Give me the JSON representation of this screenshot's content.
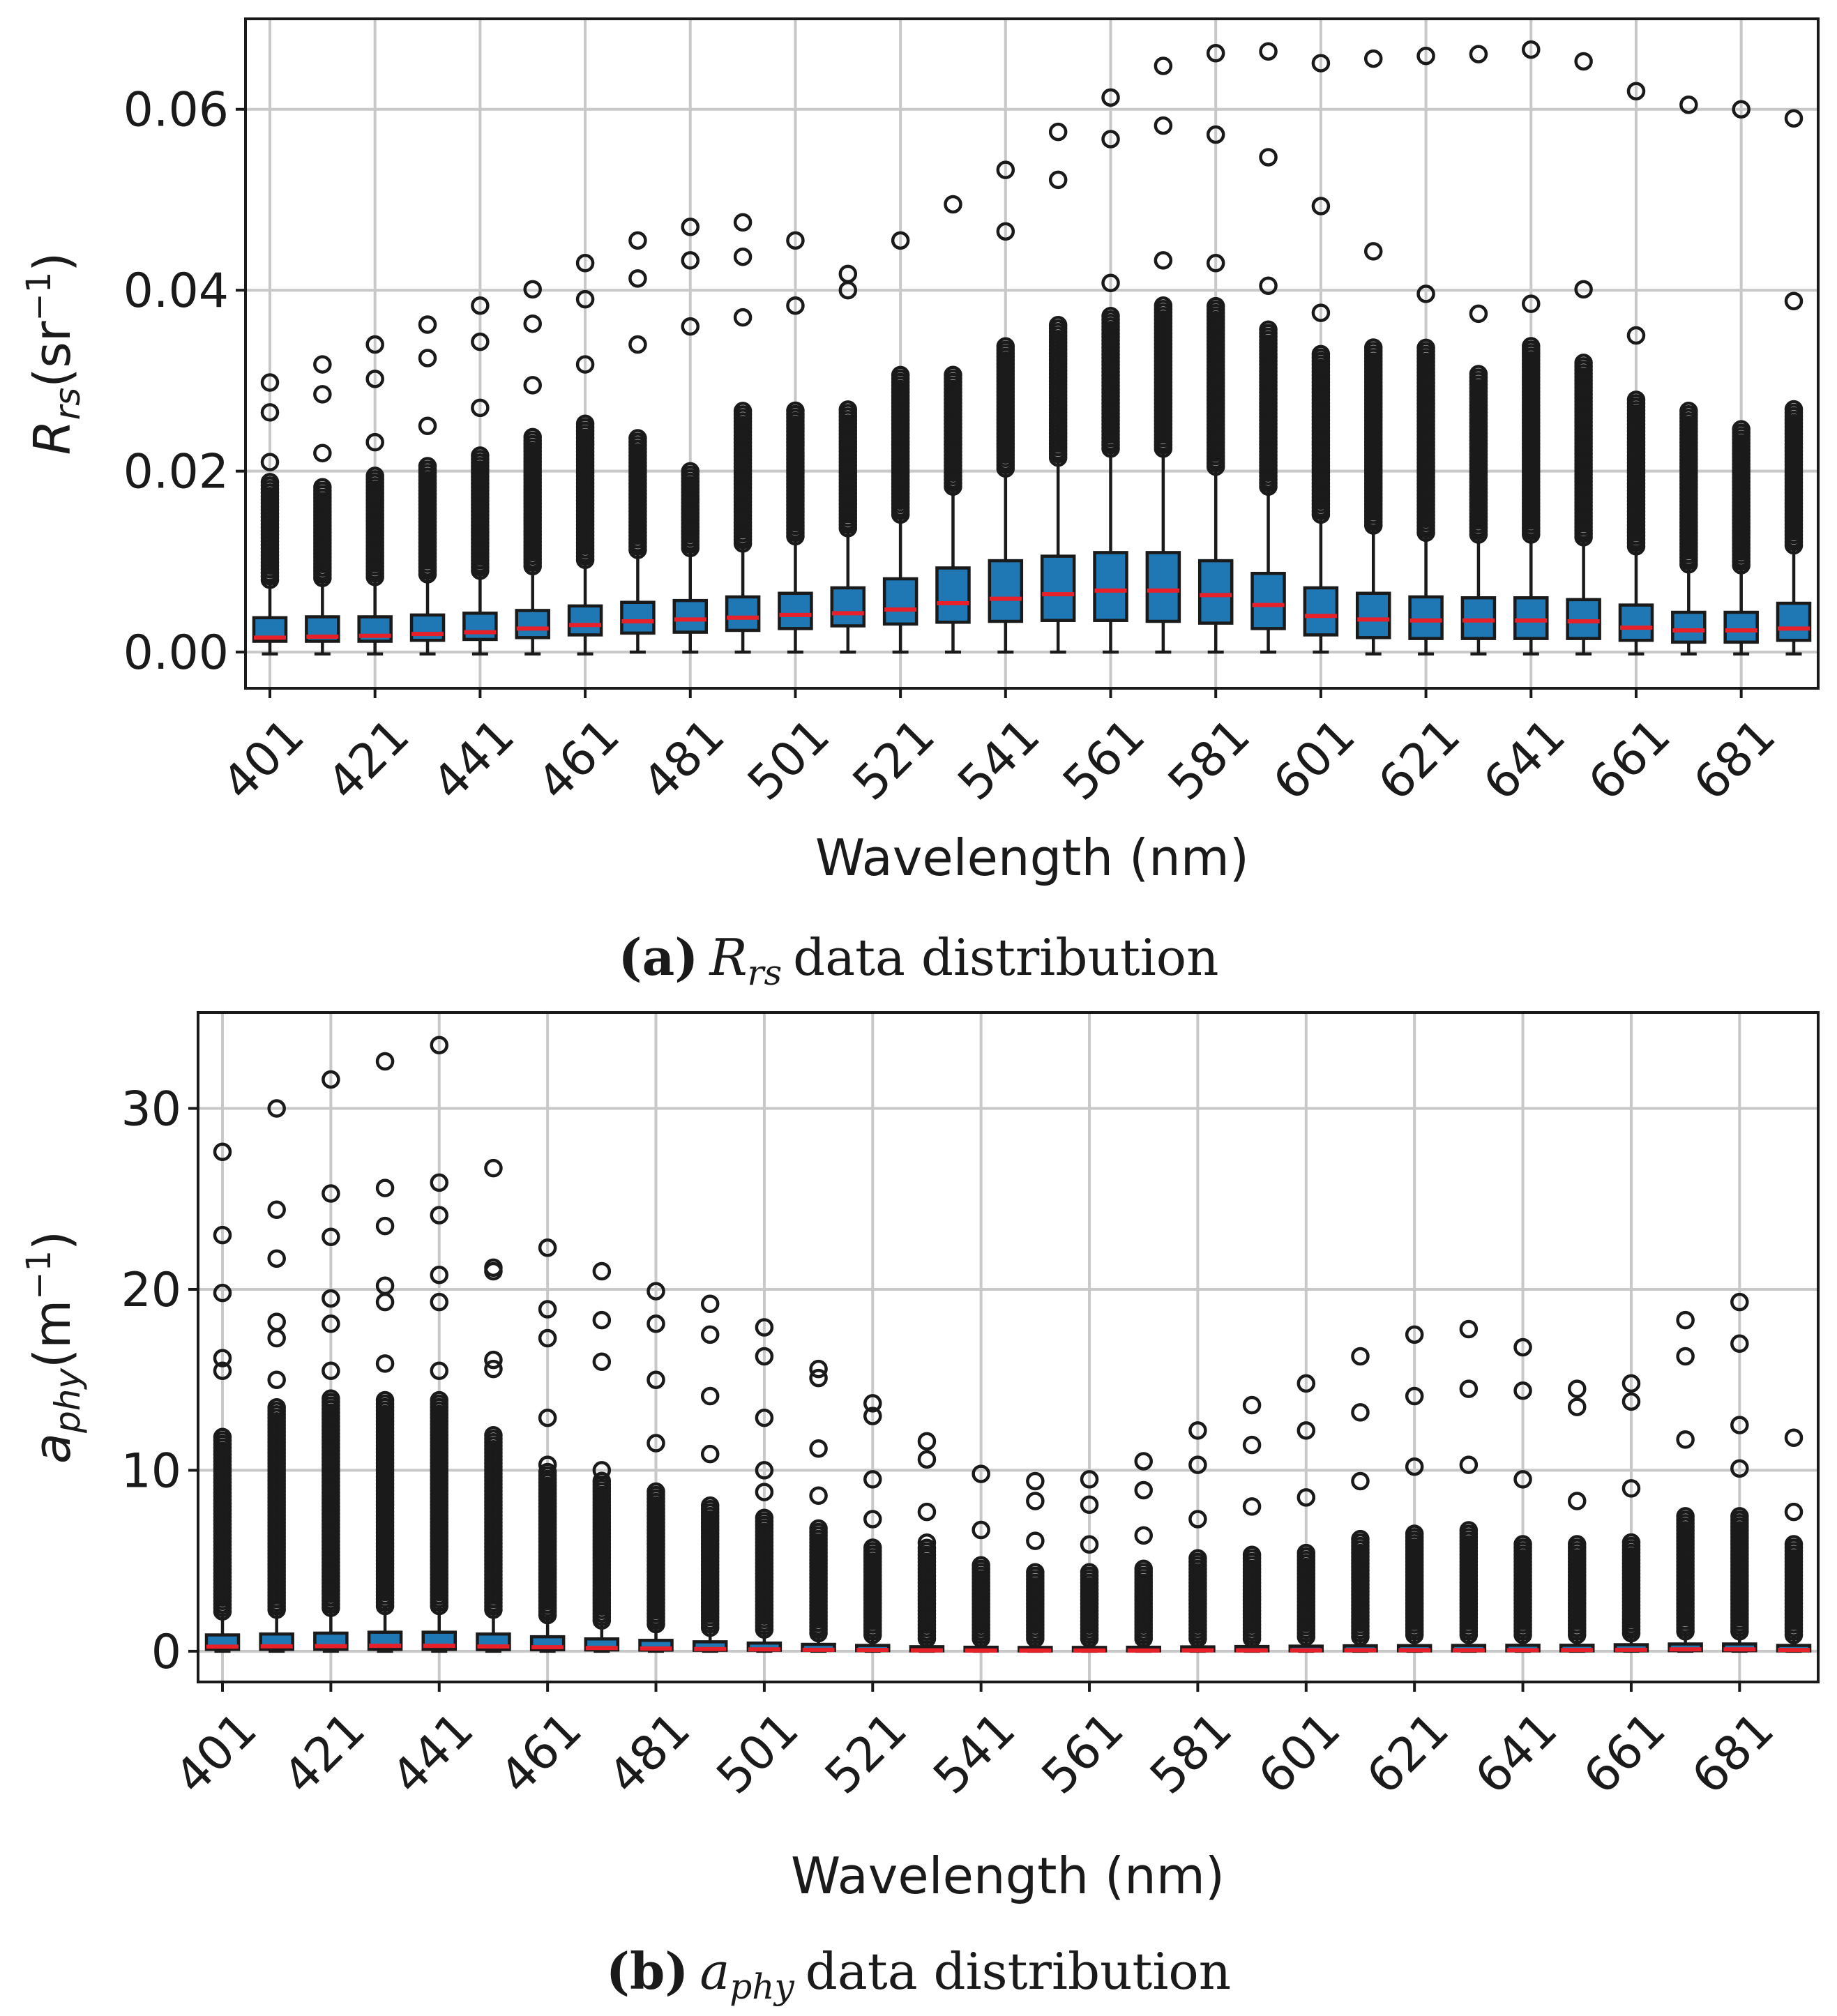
{
  "colors": {
    "box_fill": "#1f77b4",
    "median": "#e8202a",
    "grid": "#c8c8c8",
    "text": "#1a1a1a"
  },
  "chart_data": [
    {
      "type": "box",
      "panel": "a",
      "caption": {
        "label": "(a)",
        "symbol": "R",
        "subscript": "rs",
        "text": "data distribution"
      },
      "xlabel": "Wavelength (nm)",
      "ylabel": {
        "symbol": "R",
        "subscript": "rs",
        "unit_open": "(sr",
        "unit_exp": "−1",
        "unit_close": ")"
      },
      "ylim": [
        -0.004,
        0.07
      ],
      "yticks": [
        "0.00",
        "0.02",
        "0.04",
        "0.06"
      ],
      "ytick_values": [
        0,
        0.02,
        0.04,
        0.06
      ],
      "grid": true,
      "wavelengths": [
        401,
        411,
        421,
        431,
        441,
        451,
        461,
        471,
        481,
        491,
        501,
        511,
        521,
        531,
        541,
        551,
        561,
        571,
        581,
        591,
        601,
        611,
        621,
        631,
        641,
        651,
        661,
        671,
        681,
        691
      ],
      "xticks": [
        "401",
        "421",
        "441",
        "461",
        "481",
        "501",
        "521",
        "541",
        "561",
        "581",
        "601",
        "621",
        "641",
        "661",
        "681"
      ],
      "q1": [
        0.0012,
        0.0012,
        0.0012,
        0.0013,
        0.0014,
        0.0016,
        0.0019,
        0.0021,
        0.0022,
        0.0024,
        0.0026,
        0.0029,
        0.0031,
        0.0033,
        0.0034,
        0.0035,
        0.0035,
        0.0034,
        0.0032,
        0.0026,
        0.0019,
        0.0016,
        0.0015,
        0.0015,
        0.0015,
        0.0015,
        0.0013,
        0.0011,
        0.0011,
        0.0013
      ],
      "median": [
        0.0016,
        0.0017,
        0.0018,
        0.002,
        0.0022,
        0.0026,
        0.003,
        0.0034,
        0.0036,
        0.0038,
        0.0041,
        0.0043,
        0.0047,
        0.0054,
        0.0059,
        0.0064,
        0.0068,
        0.0068,
        0.0063,
        0.0052,
        0.004,
        0.0036,
        0.0035,
        0.0035,
        0.0035,
        0.0034,
        0.0027,
        0.0024,
        0.0024,
        0.0026
      ],
      "q3": [
        0.0038,
        0.0039,
        0.0039,
        0.0041,
        0.0043,
        0.0046,
        0.0051,
        0.0055,
        0.0057,
        0.0061,
        0.0065,
        0.0071,
        0.0081,
        0.0093,
        0.0101,
        0.0106,
        0.011,
        0.011,
        0.0101,
        0.0087,
        0.0071,
        0.0065,
        0.0061,
        0.006,
        0.006,
        0.0058,
        0.0052,
        0.0044,
        0.0044,
        0.0054
      ],
      "whisker_low": [
        -0.0002,
        -0.0002,
        -0.0002,
        -0.0002,
        -0.0002,
        -0.0002,
        -0.0002,
        0.0,
        0.0,
        0.0,
        0.0,
        0.0,
        0.0,
        0.0,
        0.0,
        0.0,
        0.0,
        0.0,
        0.0,
        0.0,
        0.0,
        -0.0002,
        -0.0002,
        -0.0002,
        -0.0002,
        -0.0002,
        -0.0002,
        -0.0002,
        -0.0002,
        -0.0002
      ],
      "whisker_high": [
        0.0078,
        0.008,
        0.0081,
        0.0084,
        0.0088,
        0.0093,
        0.01,
        0.011,
        0.0113,
        0.0118,
        0.0126,
        0.0134,
        0.015,
        0.018,
        0.02,
        0.0212,
        0.0222,
        0.0222,
        0.0202,
        0.018,
        0.015,
        0.0138,
        0.013,
        0.0128,
        0.0128,
        0.0125,
        0.0115,
        0.0095,
        0.0094,
        0.0116
      ],
      "outlier_min": [
        0.008,
        0.0082,
        0.0083,
        0.0086,
        0.009,
        0.0095,
        0.0102,
        0.0113,
        0.0115,
        0.012,
        0.0128,
        0.0137,
        0.0152,
        0.0183,
        0.0203,
        0.0215,
        0.0225,
        0.0225,
        0.0205,
        0.0183,
        0.0152,
        0.014,
        0.0132,
        0.013,
        0.013,
        0.0127,
        0.0117,
        0.0097,
        0.0096,
        0.0118
      ],
      "outlier_dense_max": [
        0.019,
        0.0185,
        0.0198,
        0.0208,
        0.022,
        0.024,
        0.0255,
        0.024,
        0.02,
        0.027,
        0.027,
        0.027,
        0.031,
        0.031,
        0.034,
        0.0365,
        0.0375,
        0.0385,
        0.0385,
        0.036,
        0.033,
        0.034,
        0.034,
        0.031,
        0.034,
        0.032,
        0.028,
        0.027,
        0.025,
        0.027
      ],
      "outliers": [
        [
          0.021,
          0.0265,
          0.0298
        ],
        [
          0.022,
          0.0285,
          0.0318
        ],
        [
          0.0232,
          0.0302,
          0.034
        ],
        [
          0.025,
          0.0325,
          0.0362
        ],
        [
          0.027,
          0.0343,
          0.0383
        ],
        [
          0.0295,
          0.0363,
          0.0401
        ],
        [
          0.0318,
          0.039,
          0.043
        ],
        [
          0.034,
          0.0413,
          0.0455
        ],
        [
          0.036,
          0.0433,
          0.047
        ],
        [
          0.037,
          0.0437,
          0.0475
        ],
        [
          0.0383,
          0.0455
        ],
        [
          0.04,
          0.0418
        ],
        [
          0.0455
        ],
        [
          0.0495
        ],
        [
          0.0465,
          0.0533
        ],
        [
          0.0522,
          0.0575
        ],
        [
          0.0408,
          0.0567,
          0.0613
        ],
        [
          0.0433,
          0.0582,
          0.0648
        ],
        [
          0.043,
          0.0572,
          0.0662
        ],
        [
          0.0405,
          0.0547,
          0.0664
        ],
        [
          0.0375,
          0.0493,
          0.0651
        ],
        [
          0.0443,
          0.0656
        ],
        [
          0.0396,
          0.0659
        ],
        [
          0.0374,
          0.0661
        ],
        [
          0.0385,
          0.0666
        ],
        [
          0.0401,
          0.0653
        ],
        [
          0.035,
          0.062
        ],
        [
          0.0605
        ],
        [
          0.06
        ],
        [
          0.0388,
          0.059
        ]
      ]
    },
    {
      "type": "box",
      "panel": "b",
      "caption": {
        "label": "(b)",
        "symbol": "a",
        "subscript": "phy",
        "text": "data distribution"
      },
      "xlabel": "Wavelength (nm)",
      "ylabel": {
        "symbol": "a",
        "subscript": "phy",
        "unit_open": "(m",
        "unit_exp": "−1",
        "unit_close": ")"
      },
      "ylim": [
        -1.7,
        35.3
      ],
      "yticks": [
        "0",
        "10",
        "20",
        "30"
      ],
      "ytick_values": [
        0,
        10,
        20,
        30
      ],
      "grid": true,
      "wavelengths": [
        401,
        411,
        421,
        431,
        441,
        451,
        461,
        471,
        481,
        491,
        501,
        511,
        521,
        531,
        541,
        551,
        561,
        571,
        581,
        591,
        601,
        611,
        621,
        631,
        641,
        651,
        661,
        671,
        681,
        691
      ],
      "xticks": [
        "401",
        "421",
        "441",
        "461",
        "481",
        "501",
        "521",
        "541",
        "561",
        "581",
        "601",
        "621",
        "641",
        "661",
        "681"
      ],
      "q1": [
        0.1,
        0.1,
        0.1,
        0.1,
        0.1,
        0.09,
        0.08,
        0.07,
        0.06,
        0.05,
        0.05,
        0.04,
        0.03,
        0.02,
        0.02,
        0.02,
        0.02,
        0.02,
        0.02,
        0.02,
        0.02,
        0.02,
        0.02,
        0.02,
        0.02,
        0.02,
        0.02,
        0.03,
        0.03,
        0.02
      ],
      "median": [
        0.25,
        0.27,
        0.28,
        0.3,
        0.3,
        0.26,
        0.22,
        0.18,
        0.15,
        0.12,
        0.1,
        0.08,
        0.07,
        0.05,
        0.04,
        0.04,
        0.04,
        0.04,
        0.05,
        0.05,
        0.05,
        0.06,
        0.06,
        0.06,
        0.06,
        0.07,
        0.08,
        0.1,
        0.1,
        0.07
      ],
      "q3": [
        0.9,
        0.95,
        1.0,
        1.05,
        1.05,
        0.95,
        0.8,
        0.68,
        0.6,
        0.52,
        0.45,
        0.38,
        0.32,
        0.25,
        0.22,
        0.21,
        0.21,
        0.22,
        0.24,
        0.26,
        0.28,
        0.3,
        0.31,
        0.32,
        0.33,
        0.33,
        0.36,
        0.4,
        0.4,
        0.32
      ],
      "whisker_low": [
        0,
        0,
        0,
        0,
        0,
        0,
        0,
        0,
        0,
        0,
        0,
        0,
        0,
        0,
        0,
        0,
        0,
        0,
        0,
        0,
        0,
        0,
        0,
        0,
        0,
        0,
        0,
        0,
        0,
        0
      ],
      "whisker_high": [
        2.0,
        2.1,
        2.2,
        2.3,
        2.3,
        2.1,
        1.8,
        1.5,
        1.3,
        1.1,
        1.0,
        0.8,
        0.7,
        0.5,
        0.5,
        0.5,
        0.5,
        0.5,
        0.5,
        0.5,
        0.6,
        0.6,
        0.7,
        0.7,
        0.7,
        0.7,
        0.8,
        0.9,
        0.9,
        0.7
      ],
      "outlier_min": [
        2.2,
        2.3,
        2.4,
        2.5,
        2.5,
        2.3,
        2.0,
        1.7,
        1.5,
        1.3,
        1.2,
        1.0,
        0.9,
        0.7,
        0.7,
        0.7,
        0.7,
        0.7,
        0.7,
        0.7,
        0.8,
        0.8,
        0.9,
        0.9,
        0.9,
        0.9,
        1.0,
        1.1,
        1.1,
        0.9
      ],
      "outlier_dense_max": [
        12.0,
        13.5,
        14.0,
        14.0,
        14.0,
        12.0,
        10.0,
        9.5,
        9.0,
        8.2,
        7.5,
        6.8,
        5.8,
        5.8,
        4.8,
        4.5,
        4.5,
        4.7,
        5.2,
        5.5,
        5.5,
        6.2,
        6.5,
        6.8,
        6.0,
        6.0,
        6.2,
        7.5,
        7.5,
        6.0
      ],
      "outliers": [
        [
          15.5,
          16.2,
          19.8,
          23.0,
          27.6
        ],
        [
          15.0,
          17.3,
          18.2,
          21.7,
          24.4,
          30.0
        ],
        [
          15.5,
          18.1,
          19.5,
          22.9,
          25.3,
          31.6
        ],
        [
          15.9,
          19.3,
          20.2,
          23.5,
          25.6,
          32.6
        ],
        [
          15.5,
          19.3,
          20.8,
          24.1,
          25.9,
          33.5
        ],
        [
          15.6,
          16.1,
          21.0,
          21.2,
          26.7
        ],
        [
          10.3,
          12.9,
          17.3,
          18.9,
          22.3
        ],
        [
          10.0,
          16.0,
          18.3,
          21.0
        ],
        [
          11.5,
          15.0,
          18.1,
          19.9
        ],
        [
          10.9,
          14.1,
          17.5,
          19.2
        ],
        [
          8.8,
          10.0,
          12.9,
          16.3,
          17.9
        ],
        [
          8.6,
          11.2,
          15.1,
          15.6
        ],
        [
          7.3,
          9.5,
          13.0,
          13.7
        ],
        [
          6.0,
          7.7,
          10.6,
          11.6
        ],
        [
          6.7,
          9.8
        ],
        [
          6.1,
          8.3,
          9.4
        ],
        [
          5.9,
          8.1,
          9.5
        ],
        [
          6.4,
          8.9,
          10.5
        ],
        [
          7.3,
          10.3,
          12.2
        ],
        [
          8.0,
          11.4,
          13.6
        ],
        [
          8.5,
          12.2,
          14.8
        ],
        [
          9.4,
          13.2,
          16.3
        ],
        [
          10.2,
          14.1,
          17.5
        ],
        [
          10.3,
          14.5,
          17.8
        ],
        [
          9.5,
          14.4,
          16.8
        ],
        [
          8.3,
          13.5,
          14.5
        ],
        [
          9.0,
          13.8,
          14.8
        ],
        [
          11.7,
          16.3,
          18.3
        ],
        [
          10.1,
          12.5,
          17.0,
          19.3
        ],
        [
          7.7,
          11.8
        ]
      ]
    }
  ]
}
